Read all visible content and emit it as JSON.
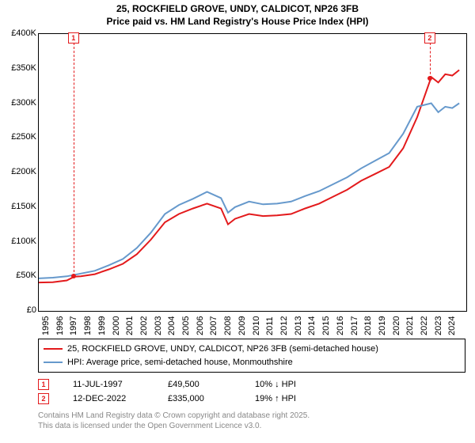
{
  "title_line1": "25, ROCKFIELD GROVE, UNDY, CALDICOT, NP26 3FB",
  "title_line2": "Price paid vs. HM Land Registry's House Price Index (HPI)",
  "chart": {
    "type": "line",
    "plot_bg": "#ffffff",
    "border_color": "#000000",
    "xlim": [
      1995,
      2025.5
    ],
    "ylim": [
      0,
      400000
    ],
    "ytick_step": 50000,
    "yticks": [
      "£0",
      "£50K",
      "£100K",
      "£150K",
      "£200K",
      "£250K",
      "£300K",
      "£350K",
      "£400K"
    ],
    "xticks": [
      "1995",
      "1996",
      "1997",
      "1998",
      "1999",
      "2000",
      "2001",
      "2002",
      "2003",
      "2004",
      "2005",
      "2006",
      "2007",
      "2008",
      "2009",
      "2010",
      "2011",
      "2012",
      "2013",
      "2014",
      "2015",
      "2016",
      "2017",
      "2018",
      "2019",
      "2020",
      "2021",
      "2022",
      "2023",
      "2024"
    ],
    "series": [
      {
        "name": "25, ROCKFIELD GROVE, UNDY, CALDICOT, NP26 3FB (semi-detached house)",
        "color": "#e31a1c",
        "width": 2,
        "data": [
          [
            1995,
            41000
          ],
          [
            1996,
            41500
          ],
          [
            1997,
            44000
          ],
          [
            1997.53,
            49500
          ],
          [
            1998,
            50000
          ],
          [
            1999,
            53000
          ],
          [
            2000,
            60000
          ],
          [
            2001,
            68000
          ],
          [
            2002,
            82000
          ],
          [
            2003,
            103000
          ],
          [
            2004,
            128000
          ],
          [
            2005,
            140000
          ],
          [
            2006,
            148000
          ],
          [
            2007,
            155000
          ],
          [
            2008,
            148000
          ],
          [
            2008.5,
            125000
          ],
          [
            2009,
            133000
          ],
          [
            2010,
            140000
          ],
          [
            2011,
            137000
          ],
          [
            2012,
            138000
          ],
          [
            2013,
            140000
          ],
          [
            2014,
            148000
          ],
          [
            2015,
            155000
          ],
          [
            2016,
            165000
          ],
          [
            2017,
            175000
          ],
          [
            2018,
            188000
          ],
          [
            2019,
            198000
          ],
          [
            2020,
            208000
          ],
          [
            2021,
            235000
          ],
          [
            2022,
            280000
          ],
          [
            2022.95,
            335000
          ],
          [
            2023,
            338000
          ],
          [
            2023.5,
            330000
          ],
          [
            2024,
            342000
          ],
          [
            2024.5,
            340000
          ],
          [
            2025,
            348000
          ]
        ]
      },
      {
        "name": "HPI: Average price, semi-detached house, Monmouthshire",
        "color": "#6699cc",
        "width": 2,
        "data": [
          [
            1995,
            47000
          ],
          [
            1996,
            48000
          ],
          [
            1997,
            50000
          ],
          [
            1998,
            54000
          ],
          [
            1999,
            58000
          ],
          [
            2000,
            66000
          ],
          [
            2001,
            75000
          ],
          [
            2002,
            91000
          ],
          [
            2003,
            113000
          ],
          [
            2004,
            140000
          ],
          [
            2005,
            153000
          ],
          [
            2006,
            162000
          ],
          [
            2007,
            172000
          ],
          [
            2008,
            163000
          ],
          [
            2008.5,
            142000
          ],
          [
            2009,
            150000
          ],
          [
            2010,
            158000
          ],
          [
            2011,
            154000
          ],
          [
            2012,
            155000
          ],
          [
            2013,
            158000
          ],
          [
            2014,
            166000
          ],
          [
            2015,
            173000
          ],
          [
            2016,
            183000
          ],
          [
            2017,
            193000
          ],
          [
            2018,
            206000
          ],
          [
            2019,
            217000
          ],
          [
            2020,
            228000
          ],
          [
            2021,
            256000
          ],
          [
            2022,
            295000
          ],
          [
            2023,
            300000
          ],
          [
            2023.5,
            287000
          ],
          [
            2024,
            295000
          ],
          [
            2024.5,
            293000
          ],
          [
            2025,
            300000
          ]
        ]
      }
    ],
    "markers": [
      {
        "id": "1",
        "x": 1997.53,
        "y": 49500,
        "date": "11-JUL-1997",
        "price": "£49,500",
        "delta": "10% ↓ HPI"
      },
      {
        "id": "2",
        "x": 2022.95,
        "y": 335000,
        "date": "12-DEC-2022",
        "price": "£335,000",
        "delta": "19% ↑ HPI"
      }
    ]
  },
  "legend": {
    "row1_label": "25, ROCKFIELD GROVE, UNDY, CALDICOT, NP26 3FB (semi-detached house)",
    "row2_label": "HPI: Average price, semi-detached house, Monmouthshire"
  },
  "footer_line1": "Contains HM Land Registry data © Crown copyright and database right 2025.",
  "footer_line2": "This data is licensed under the Open Government Licence v3.0.",
  "colors": {
    "series1": "#e31a1c",
    "series2": "#6699cc",
    "footer": "#888888"
  }
}
